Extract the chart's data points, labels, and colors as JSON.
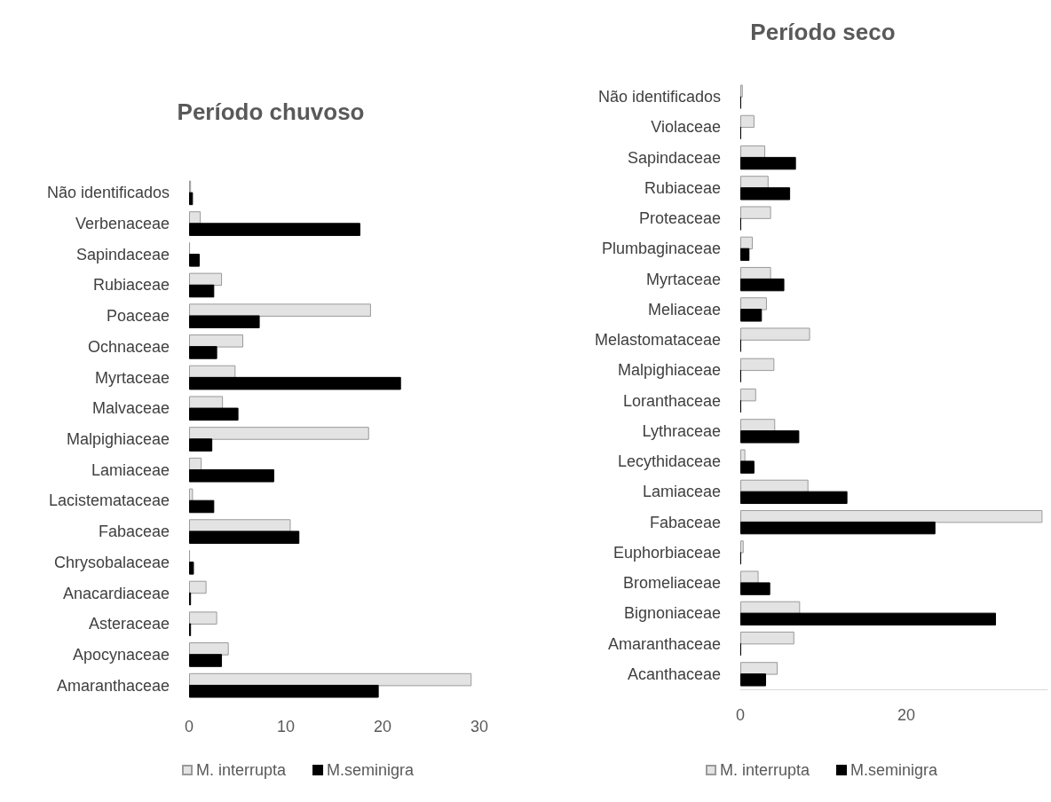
{
  "chart_data": [
    {
      "type": "bar",
      "orientation": "horizontal",
      "title": "Período chuvoso",
      "legend": "bottom",
      "grid": false,
      "xlim": [
        0,
        30
      ],
      "xticks": [
        0,
        10,
        20,
        30
      ],
      "categories": [
        "Não identificados",
        "Verbenaceae",
        "Sapindaceae",
        "Rubiaceae",
        "Poaceae",
        "Ochnaceae",
        "Myrtaceae",
        "Malvaceae",
        "Malpighiaceae",
        "Lamiaceae",
        "Lacistemataceae",
        "Fabaceae",
        "Chrysobalaceae",
        "Anacardiaceae",
        "Asteraceae",
        "Apocynaceae",
        "Amaranthaceae"
      ],
      "series": [
        {
          "name": "M. interrupta",
          "color": "#e3e3e3",
          "values": [
            0.2,
            1.2,
            0.1,
            3.4,
            18.8,
            5.6,
            4.8,
            3.5,
            18.6,
            1.3,
            0.4,
            10.5,
            0.1,
            1.8,
            2.9,
            4.1,
            29.2
          ]
        },
        {
          "name": "M.seminigra",
          "color": "#000000",
          "values": [
            0.4,
            17.7,
            1.1,
            2.6,
            7.3,
            2.9,
            21.9,
            5.1,
            2.4,
            8.8,
            2.6,
            11.4,
            0.5,
            0.2,
            0.2,
            3.4,
            19.6
          ]
        }
      ]
    },
    {
      "type": "bar",
      "orientation": "horizontal",
      "title": "Período seco",
      "legend": "bottom",
      "grid": false,
      "xlim": [
        0,
        37
      ],
      "xticks": [
        0,
        20
      ],
      "categories": [
        "Não identificados",
        "Violaceae",
        "Sapindaceae",
        "Rubiaceae",
        "Proteaceae",
        "Plumbaginaceae",
        "Myrtaceae",
        "Meliaceae",
        "Melastomataceae",
        "Malpighiaceae",
        "Loranthaceae",
        "Lythraceae",
        "Lecythidaceae",
        "Lamiaceae",
        "Fabaceae",
        "Euphorbiaceae",
        "Bromeliaceae",
        "Bignoniaceae",
        "Amaranthaceae",
        "Acanthaceae"
      ],
      "series": [
        {
          "name": "M. interrupta",
          "color": "#e3e3e3",
          "values": [
            0.3,
            1.7,
            3.0,
            3.4,
            3.7,
            1.5,
            3.7,
            3.2,
            8.4,
            4.1,
            1.9,
            4.2,
            0.6,
            8.2,
            36.4,
            0.4,
            2.2,
            7.2,
            6.5,
            4.5
          ]
        },
        {
          "name": "M.seminigra",
          "color": "#000000",
          "values": [
            0.1,
            0.1,
            6.7,
            6.0,
            0.1,
            1.1,
            5.3,
            2.6,
            0.1,
            0.1,
            0.1,
            7.1,
            1.7,
            12.9,
            23.5,
            0.1,
            3.6,
            30.8,
            0.1,
            3.1
          ]
        }
      ]
    }
  ]
}
